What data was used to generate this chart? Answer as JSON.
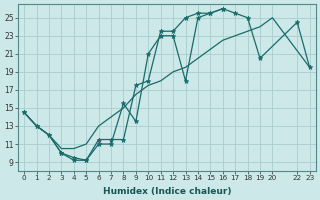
{
  "title": "",
  "xlabel": "Humidex (Indice chaleur)",
  "bg_color": "#cce8e8",
  "grid_color": "#aacccc",
  "line_color": "#1a6b6b",
  "xlim": [
    -0.5,
    23.5
  ],
  "ylim": [
    8.0,
    26.5
  ],
  "xticks": [
    0,
    1,
    2,
    3,
    4,
    5,
    6,
    7,
    8,
    9,
    10,
    11,
    12,
    13,
    14,
    15,
    16,
    17,
    18,
    19,
    20,
    22,
    23
  ],
  "yticks": [
    9,
    11,
    13,
    15,
    17,
    19,
    21,
    23,
    25
  ],
  "curve1_x": [
    0,
    1,
    2,
    3,
    4,
    5,
    6,
    7,
    8,
    9,
    10,
    11,
    12,
    13,
    14,
    15,
    16
  ],
  "curve1_y": [
    14.5,
    13.0,
    12.0,
    10.0,
    9.2,
    9.2,
    11.0,
    11.0,
    15.5,
    13.5,
    21.0,
    23.0,
    23.0,
    18.0,
    25.0,
    25.5,
    26.0
  ],
  "curve2_x": [
    0,
    1,
    2,
    3,
    4,
    5,
    6,
    7,
    8,
    9,
    10,
    11,
    12,
    13,
    14,
    15,
    16,
    17,
    18,
    19,
    22,
    23
  ],
  "curve2_y": [
    14.5,
    13.0,
    12.0,
    10.0,
    9.5,
    9.2,
    11.5,
    11.5,
    11.5,
    17.5,
    18.0,
    23.5,
    23.5,
    25.0,
    25.5,
    25.5,
    26.0,
    25.5,
    25.0,
    20.5,
    24.5,
    19.5
  ],
  "curve3_x": [
    0,
    1,
    2,
    3,
    4,
    5,
    6,
    7,
    8,
    9,
    10,
    11,
    12,
    13,
    14,
    15,
    16,
    17,
    18,
    19,
    20,
    23
  ],
  "curve3_y": [
    14.5,
    13.0,
    12.0,
    10.5,
    10.5,
    11.0,
    13.0,
    14.0,
    15.0,
    16.5,
    17.5,
    18.0,
    19.0,
    19.5,
    20.5,
    21.5,
    22.5,
    23.0,
    23.5,
    24.0,
    25.0,
    19.5
  ]
}
